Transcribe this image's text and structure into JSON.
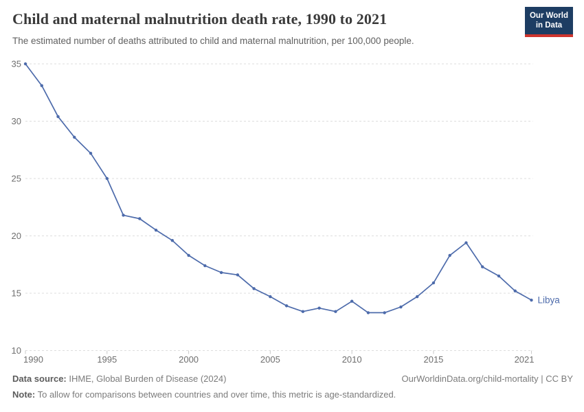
{
  "logo": {
    "line1": "Our World",
    "line2": "in Data"
  },
  "chart_data": {
    "type": "line",
    "title": "Child and maternal malnutrition death rate, 1990 to 2021",
    "subtitle": "The estimated number of deaths attributed to child and maternal malnutrition, per 100,000 people.",
    "x": [
      1990,
      1991,
      1992,
      1993,
      1994,
      1995,
      1996,
      1997,
      1998,
      1999,
      2000,
      2001,
      2002,
      2003,
      2004,
      2005,
      2006,
      2007,
      2008,
      2009,
      2010,
      2011,
      2012,
      2013,
      2014,
      2015,
      2016,
      2017,
      2018,
      2019,
      2020,
      2021
    ],
    "series": [
      {
        "name": "Libya",
        "values": [
          35.0,
          33.1,
          30.4,
          28.6,
          27.2,
          25.0,
          21.8,
          21.5,
          20.5,
          19.6,
          18.3,
          17.4,
          16.8,
          16.6,
          15.4,
          14.7,
          13.9,
          13.4,
          13.7,
          13.4,
          14.3,
          13.3,
          13.3,
          13.8,
          14.7,
          15.9,
          18.3,
          19.4,
          17.3,
          16.5,
          15.2,
          14.4
        ],
        "color": "#4d6bab"
      }
    ],
    "xlim": [
      1990,
      2021
    ],
    "ylim": [
      10,
      35
    ],
    "yticks": [
      10,
      15,
      20,
      25,
      30,
      35
    ],
    "xticks": [
      1990,
      1995,
      2000,
      2005,
      2010,
      2015,
      2021
    ],
    "grid": "horizontal-dashed",
    "legend_position": "end-of-line-label",
    "end_label": "Libya"
  },
  "footer": {
    "datasource_label": "Data source:",
    "datasource_text": " IHME, Global Burden of Disease (2024)",
    "rights": "OurWorldinData.org/child-mortality | CC BY",
    "note_label": "Note:",
    "note_text": " To allow for comparisons between countries and over time, this metric is age-standardized."
  },
  "colors": {
    "line": "#4d6bab",
    "gridline": "#dddddd",
    "tick": "#c9c9c9",
    "axis_text": "#6e6e6e",
    "logo_bg": "#1d3d63",
    "logo_red": "#cf352e"
  }
}
